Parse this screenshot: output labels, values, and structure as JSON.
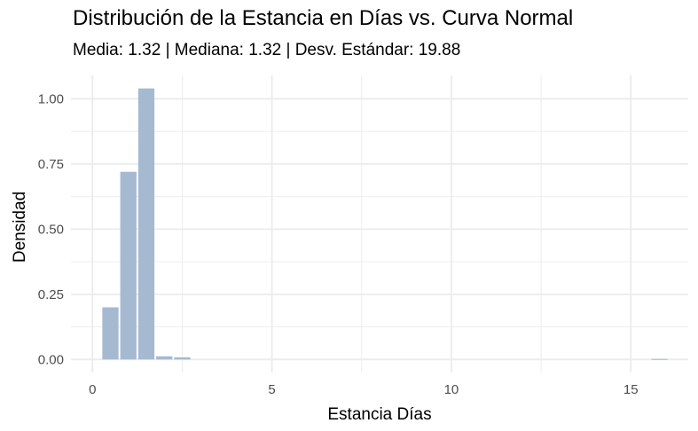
{
  "chart_data": {
    "type": "bar",
    "title": "Distribución de la Estancia en Días vs. Curva Normal",
    "subtitle": "Media: 1.32 | Mediana: 1.32 | Desv. Estándar: 19.88",
    "xlabel": "Estancia Días",
    "ylabel": "Densidad",
    "xlim": [
      -0.6,
      16.6
    ],
    "ylim": [
      -0.05,
      1.09
    ],
    "x_ticks": [
      0,
      5,
      10,
      15
    ],
    "y_ticks": [
      0.0,
      0.25,
      0.5,
      0.75,
      1.0
    ],
    "x_tick_labels": [
      "0",
      "5",
      "10",
      "15"
    ],
    "y_tick_labels": [
      "0.00",
      "0.25",
      "0.50",
      "0.75",
      "1.00"
    ],
    "grid": true,
    "bin_width": 0.5,
    "bars": [
      {
        "x": 0.5,
        "value": 0.2
      },
      {
        "x": 1.0,
        "value": 0.72
      },
      {
        "x": 1.5,
        "value": 1.04
      },
      {
        "x": 2.0,
        "value": 0.012
      },
      {
        "x": 2.5,
        "value": 0.008
      },
      {
        "x": 15.8,
        "value": 0.002
      }
    ],
    "colors": {
      "bar_fill": "#a5b9d1",
      "grid": "#ebebeb"
    }
  }
}
